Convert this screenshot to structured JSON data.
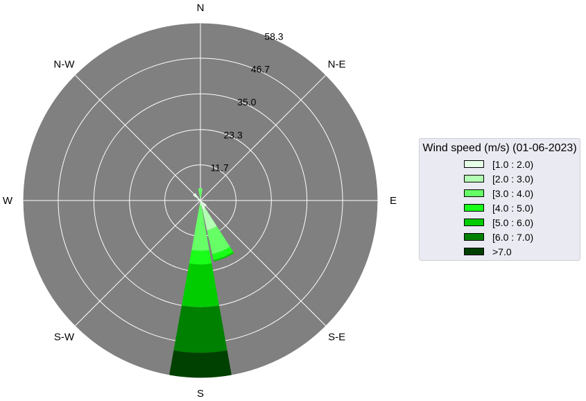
{
  "chart_data": {
    "type": "windrose",
    "directions": [
      "N",
      "N-E",
      "E",
      "S-E",
      "S",
      "S-W",
      "W",
      "N-W"
    ],
    "radial_ticks": [
      "11.7",
      "23.3",
      "35.0",
      "46.7",
      "58.3"
    ],
    "radial_max": 58.3,
    "legend_title": "Wind speed (m/s) (01-06-2023)",
    "bins": [
      {
        "label": "[1.0 : 2.0)",
        "color": "#e6ffe6"
      },
      {
        "label": "[2.0 : 3.0)",
        "color": "#b3ffb3"
      },
      {
        "label": "[3.0 : 4.0)",
        "color": "#66ff66"
      },
      {
        "label": "[4.0 : 5.0)",
        "color": "#1aff1a"
      },
      {
        "label": "[5.0 : 6.0)",
        "color": "#00cc00"
      },
      {
        "label": ">7.0",
        "color": "#004000"
      },
      {
        "label": "[6.0 : 7.0)",
        "color": "#008000"
      }
    ],
    "bars": [
      {
        "direction_deg": 0,
        "cumulative": [
          1.0,
          1.2,
          4.0,
          4.0,
          4.0,
          4.0,
          4.0
        ]
      },
      {
        "direction_deg": 157.5,
        "cumulative": [
          3.0,
          10.0,
          18.0,
          20.0,
          20.5,
          20.5,
          20.5
        ]
      },
      {
        "direction_deg": 180,
        "cumulative": [
          0.8,
          1.6,
          16.5,
          21.0,
          35.0,
          50.0,
          58.3
        ]
      },
      {
        "direction_deg": 315,
        "cumulative": [
          3.0,
          3.0,
          3.0,
          3.0,
          3.0,
          3.0,
          3.0
        ]
      },
      {
        "direction_deg": 292.5,
        "cumulative": [
          1.0,
          1.0,
          1.0,
          1.0,
          1.0,
          1.0,
          1.0
        ]
      },
      {
        "direction_deg": 135,
        "cumulative": [
          2.5,
          2.5,
          2.5,
          2.5,
          2.5,
          2.5,
          2.5
        ]
      }
    ],
    "legend_order": [
      "[1.0 : 2.0)",
      "[2.0 : 3.0)",
      "[3.0 : 4.0)",
      "[4.0 : 5.0)",
      "[5.0 : 6.0)",
      "[6.0 : 7.0)",
      ">7.0"
    ],
    "legend_colors": [
      "#e6ffe6",
      "#b3ffb3",
      "#66ff66",
      "#1aff1a",
      "#00cc00",
      "#008000",
      "#004000"
    ],
    "background_color": "#808080",
    "grid": true
  }
}
